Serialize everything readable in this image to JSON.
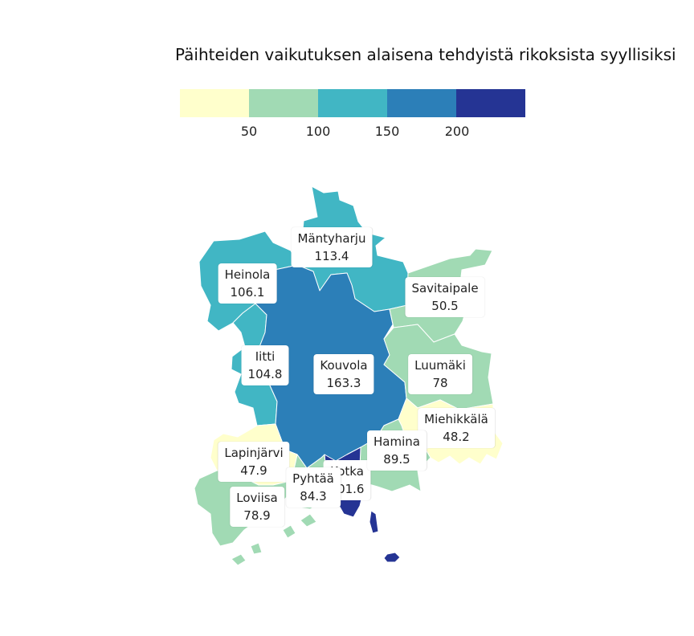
{
  "title": "Päihteiden vaikutuksen alaisena tehdyistä rikoksista syyllisiksi",
  "legend": {
    "bins": [
      {
        "min": 0,
        "max": 50,
        "color": "#ffffcc"
      },
      {
        "min": 50,
        "max": 100,
        "color": "#a1dab4"
      },
      {
        "min": 100,
        "max": 150,
        "color": "#41b6c4"
      },
      {
        "min": 150,
        "max": 200,
        "color": "#2c7fb8"
      },
      {
        "min": 200,
        "max": 250,
        "color": "#253494"
      }
    ],
    "ticks": [
      "50",
      "100",
      "150",
      "200"
    ]
  },
  "municipalities": [
    {
      "id": "mantyharju",
      "name": "Mäntyharju",
      "value": "113.4"
    },
    {
      "id": "heinola",
      "name": "Heinola",
      "value": "106.1"
    },
    {
      "id": "savitaipale",
      "name": "Savitaipale",
      "value": "50.5"
    },
    {
      "id": "iitti",
      "name": "Iitti",
      "value": "104.8"
    },
    {
      "id": "kouvola",
      "name": "Kouvola",
      "value": "163.3"
    },
    {
      "id": "luumaki",
      "name": "Luumäki",
      "value": "78"
    },
    {
      "id": "miehikkala",
      "name": "Miehikkälä",
      "value": "48.2"
    },
    {
      "id": "hamina",
      "name": "Hamina",
      "value": "89.5"
    },
    {
      "id": "lapinjarvi",
      "name": "Lapinjärvi",
      "value": "47.9"
    },
    {
      "id": "kotka",
      "name": "Kotka",
      "value": "201.6"
    },
    {
      "id": "pyhtaa",
      "name": "Pyhtää",
      "value": "84.3"
    },
    {
      "id": "loviisa",
      "name": "Loviisa",
      "value": "78.9"
    }
  ]
}
